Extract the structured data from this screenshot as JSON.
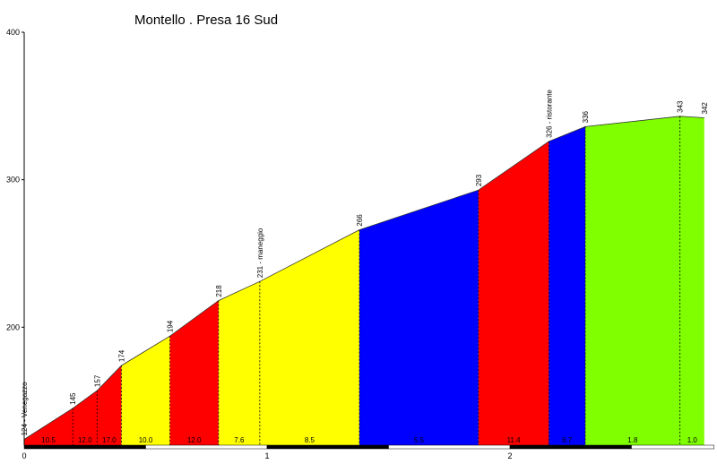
{
  "chart_data": {
    "type": "area",
    "title": "Montello . Presa 16 Sud",
    "xlabel": "",
    "ylabel": "",
    "xlim": [
      0,
      2.84
    ],
    "ylim": [
      120,
      400
    ],
    "x_ticks": [
      0,
      1,
      2
    ],
    "y_ticks": [
      200,
      300,
      400
    ],
    "profile": [
      {
        "x": 0.0,
        "y": 124,
        "label": "124 - Venegazzo"
      },
      {
        "x": 0.2,
        "y": 145,
        "label": "145"
      },
      {
        "x": 0.3,
        "y": 157,
        "label": "157"
      },
      {
        "x": 0.4,
        "y": 174,
        "label": "174"
      },
      {
        "x": 0.6,
        "y": 194,
        "label": "194"
      },
      {
        "x": 0.8,
        "y": 218,
        "label": "218"
      },
      {
        "x": 0.97,
        "y": 231,
        "label": "231 - maneggio"
      },
      {
        "x": 1.38,
        "y": 266,
        "label": "266"
      },
      {
        "x": 1.87,
        "y": 293,
        "label": "293"
      },
      {
        "x": 2.16,
        "y": 326,
        "label": "326 - ristorante"
      },
      {
        "x": 2.31,
        "y": 336,
        "label": "336"
      },
      {
        "x": 2.7,
        "y": 343,
        "label": "343"
      },
      {
        "x": 2.8,
        "y": 342,
        "label": "342"
      }
    ],
    "segments": [
      {
        "from": 0.0,
        "to": 0.4,
        "color": "#ff0000",
        "gradients": [
          {
            "x": 0.0,
            "x2": 0.2,
            "label": "10.5"
          },
          {
            "x": 0.2,
            "x2": 0.3,
            "label": "12.0"
          },
          {
            "x": 0.3,
            "x2": 0.4,
            "label": "17.0"
          }
        ]
      },
      {
        "from": 0.4,
        "to": 0.6,
        "color": "#ffff00",
        "gradients": [
          {
            "x": 0.4,
            "x2": 0.6,
            "label": "10.0"
          }
        ]
      },
      {
        "from": 0.6,
        "to": 0.8,
        "color": "#ff0000",
        "gradients": [
          {
            "x": 0.6,
            "x2": 0.8,
            "label": "12.0"
          }
        ]
      },
      {
        "from": 0.8,
        "to": 1.38,
        "color": "#ffff00",
        "gradients": [
          {
            "x": 0.8,
            "x2": 0.97,
            "label": "7.6"
          },
          {
            "x": 0.97,
            "x2": 1.38,
            "label": "8.5"
          }
        ]
      },
      {
        "from": 1.38,
        "to": 1.87,
        "color": "#0000ff",
        "gradients": [
          {
            "x": 1.38,
            "x2": 1.87,
            "label": "5.5"
          }
        ]
      },
      {
        "from": 1.87,
        "to": 2.16,
        "color": "#ff0000",
        "gradients": [
          {
            "x": 1.87,
            "x2": 2.16,
            "label": "11.4"
          }
        ]
      },
      {
        "from": 2.16,
        "to": 2.31,
        "color": "#0000ff",
        "gradients": [
          {
            "x": 2.16,
            "x2": 2.31,
            "label": "6.7"
          }
        ]
      },
      {
        "from": 2.31,
        "to": 2.8,
        "color": "#80ff00",
        "gradients": [
          {
            "x": 2.31,
            "x2": 2.7,
            "label": "1.8"
          },
          {
            "x": 2.7,
            "x2": 2.8,
            "label": "1.0"
          }
        ]
      }
    ],
    "grid": false,
    "legend": "none"
  }
}
